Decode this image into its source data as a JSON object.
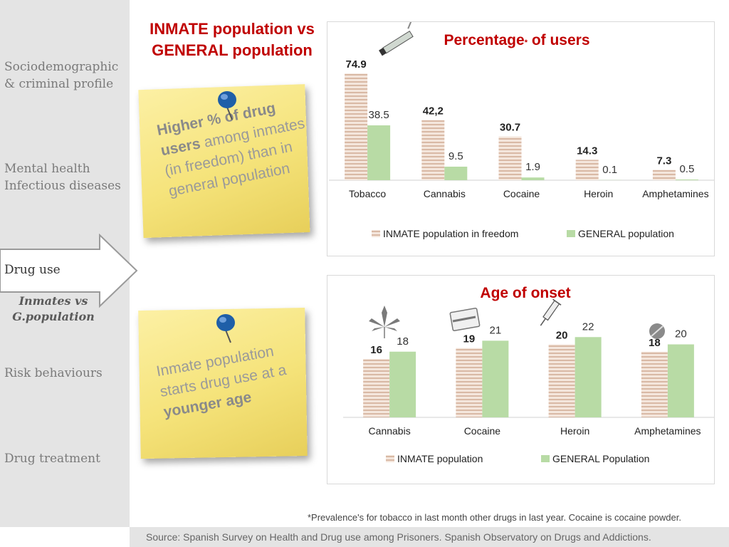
{
  "sidebar": {
    "items": [
      {
        "label": "Sociodemographic\n& criminal profile"
      },
      {
        "label": "Mental health\nInfectious diseases"
      },
      {
        "label": "Drug use"
      },
      {
        "label": "Risk behaviours"
      },
      {
        "label": "Drug treatment"
      }
    ],
    "active_sub": "Inmates vs\nG.population"
  },
  "main_title": "INMATE population vs GENERAL population",
  "notes": {
    "note1": {
      "bold": "Higher % of drug users",
      "rest": " among inmates (in freedom) than in general population"
    },
    "note2": {
      "plain": "Inmate population starts drug use at a ",
      "bold": "younger age"
    }
  },
  "footnote": "*Prevalence's for tobacco in last month other drugs in last year. Cocaine is cocaine powder.",
  "source": "Source: Spanish Survey on Health  and Drug use among Prisoners. Spanish Observatory on Drugs and Addictions.",
  "colors": {
    "title": "#c00000",
    "inmate": "#f0dcd0",
    "inmate_stripe": "#d9b9a5",
    "general": "#b8dba5"
  },
  "chart_data": [
    {
      "type": "bar",
      "title": "Percentage",
      "title_mark": "*",
      "title_rest": " of users",
      "categories": [
        "Tobacco",
        "Cannabis",
        "Cocaine",
        "Heroin",
        "Amphetamines"
      ],
      "series": [
        {
          "name": "INMATE population in freedom",
          "values": [
            74.9,
            42.2,
            30.7,
            14.3,
            7.3
          ],
          "labels": [
            "74.9",
            "42,2",
            "30.7",
            "14.3",
            "7.3"
          ]
        },
        {
          "name": "GENERAL population",
          "values": [
            38.5,
            9.5,
            1.9,
            0.1,
            0.5
          ],
          "labels": [
            "38.5",
            "9.5",
            "1.9",
            "0.1",
            "0.5"
          ]
        }
      ],
      "ylim": [
        0,
        80
      ],
      "legend": "bottom",
      "grid": false
    },
    {
      "type": "bar",
      "title": "Age of onset",
      "categories": [
        "Cannabis",
        "Cocaine",
        "Heroin",
        "Amphetamines"
      ],
      "series": [
        {
          "name": "INMATE population",
          "values": [
            16,
            19,
            20,
            18
          ],
          "labels": [
            "16",
            "19",
            "20",
            "18"
          ]
        },
        {
          "name": "GENERAL  Population",
          "values": [
            18,
            21,
            22,
            20
          ],
          "labels": [
            "18",
            "21",
            "22",
            "20"
          ]
        }
      ],
      "ylim": [
        0,
        24
      ],
      "legend": "bottom",
      "grid": false
    }
  ]
}
